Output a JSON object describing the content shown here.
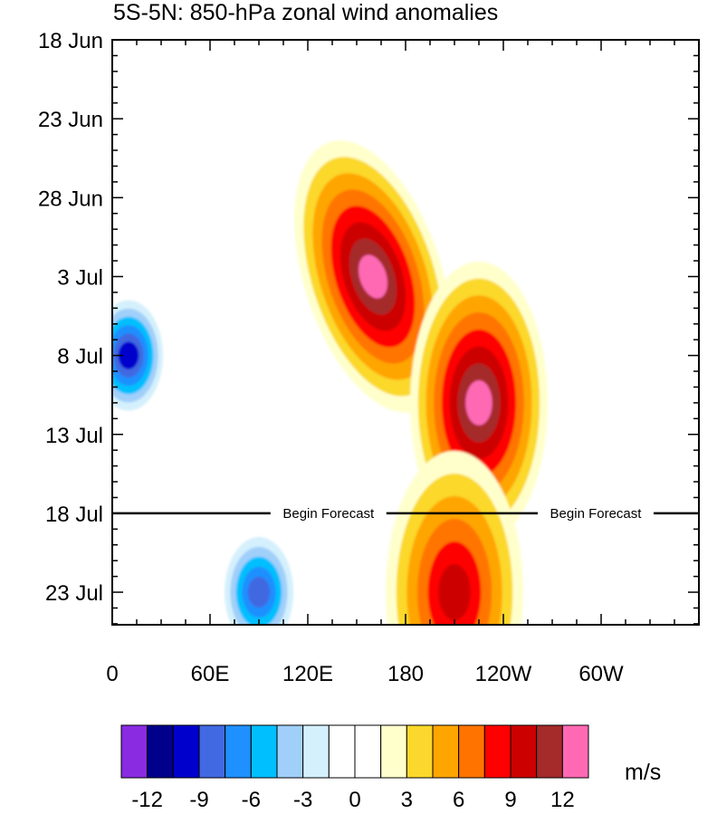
{
  "chart_data": {
    "type": "heatmap",
    "title": "5S-5N: 850-hPa zonal wind anomalies",
    "x_ticks": [
      "0",
      "60E",
      "120E",
      "180",
      "120W",
      "60W"
    ],
    "x_tick_degrees": [
      0,
      60,
      120,
      180,
      240,
      300
    ],
    "x_range_degrees": [
      0,
      360
    ],
    "y_ticks": [
      "18 Jun",
      "23 Jun",
      "28 Jun",
      "3 Jul",
      "8 Jul",
      "13 Jul",
      "18 Jul",
      "23 Jul"
    ],
    "y_tick_day_index": [
      0,
      5,
      10,
      15,
      20,
      25,
      30,
      35
    ],
    "y_range": [
      "18 Jun",
      "24 Jul"
    ],
    "forecast_line": {
      "date": "18 Jul",
      "label": "Begin Forecast",
      "label_longitudes": [
        106,
        270
      ]
    },
    "colorbar": {
      "levels": [
        -12,
        -9,
        -6,
        -3,
        0,
        3,
        6,
        9,
        12
      ],
      "level_labels": [
        "-12",
        "-9",
        "-6",
        "-3",
        "0",
        "3",
        "6",
        "9",
        "12"
      ],
      "colors": [
        "#8a2be2",
        "#00008b",
        "#0000cd",
        "#4169e1",
        "#1e90ff",
        "#00bfff",
        "#a0cffa",
        "#d4f0fc",
        "#ffffff",
        "#ffffff",
        "#ffffcc",
        "#fbd82b",
        "#ffa500",
        "#ff7400",
        "#ff0000",
        "#cd0000",
        "#a52a2a",
        "#ff69b4"
      ],
      "units": "m/s"
    },
    "features": [
      {
        "sign": "positive",
        "lon": 160,
        "date_index": 15,
        "peak": 13,
        "description_level": "max"
      },
      {
        "sign": "positive",
        "lon": 225,
        "date_index": 23,
        "peak": 13
      },
      {
        "sign": "positive",
        "lon": 210,
        "date_index": 35,
        "peak": 10
      },
      {
        "sign": "negative",
        "lon": 10,
        "date_index": 20,
        "peak": -9
      },
      {
        "sign": "negative",
        "lon": 90,
        "date_index": 35,
        "peak": -8
      }
    ]
  }
}
